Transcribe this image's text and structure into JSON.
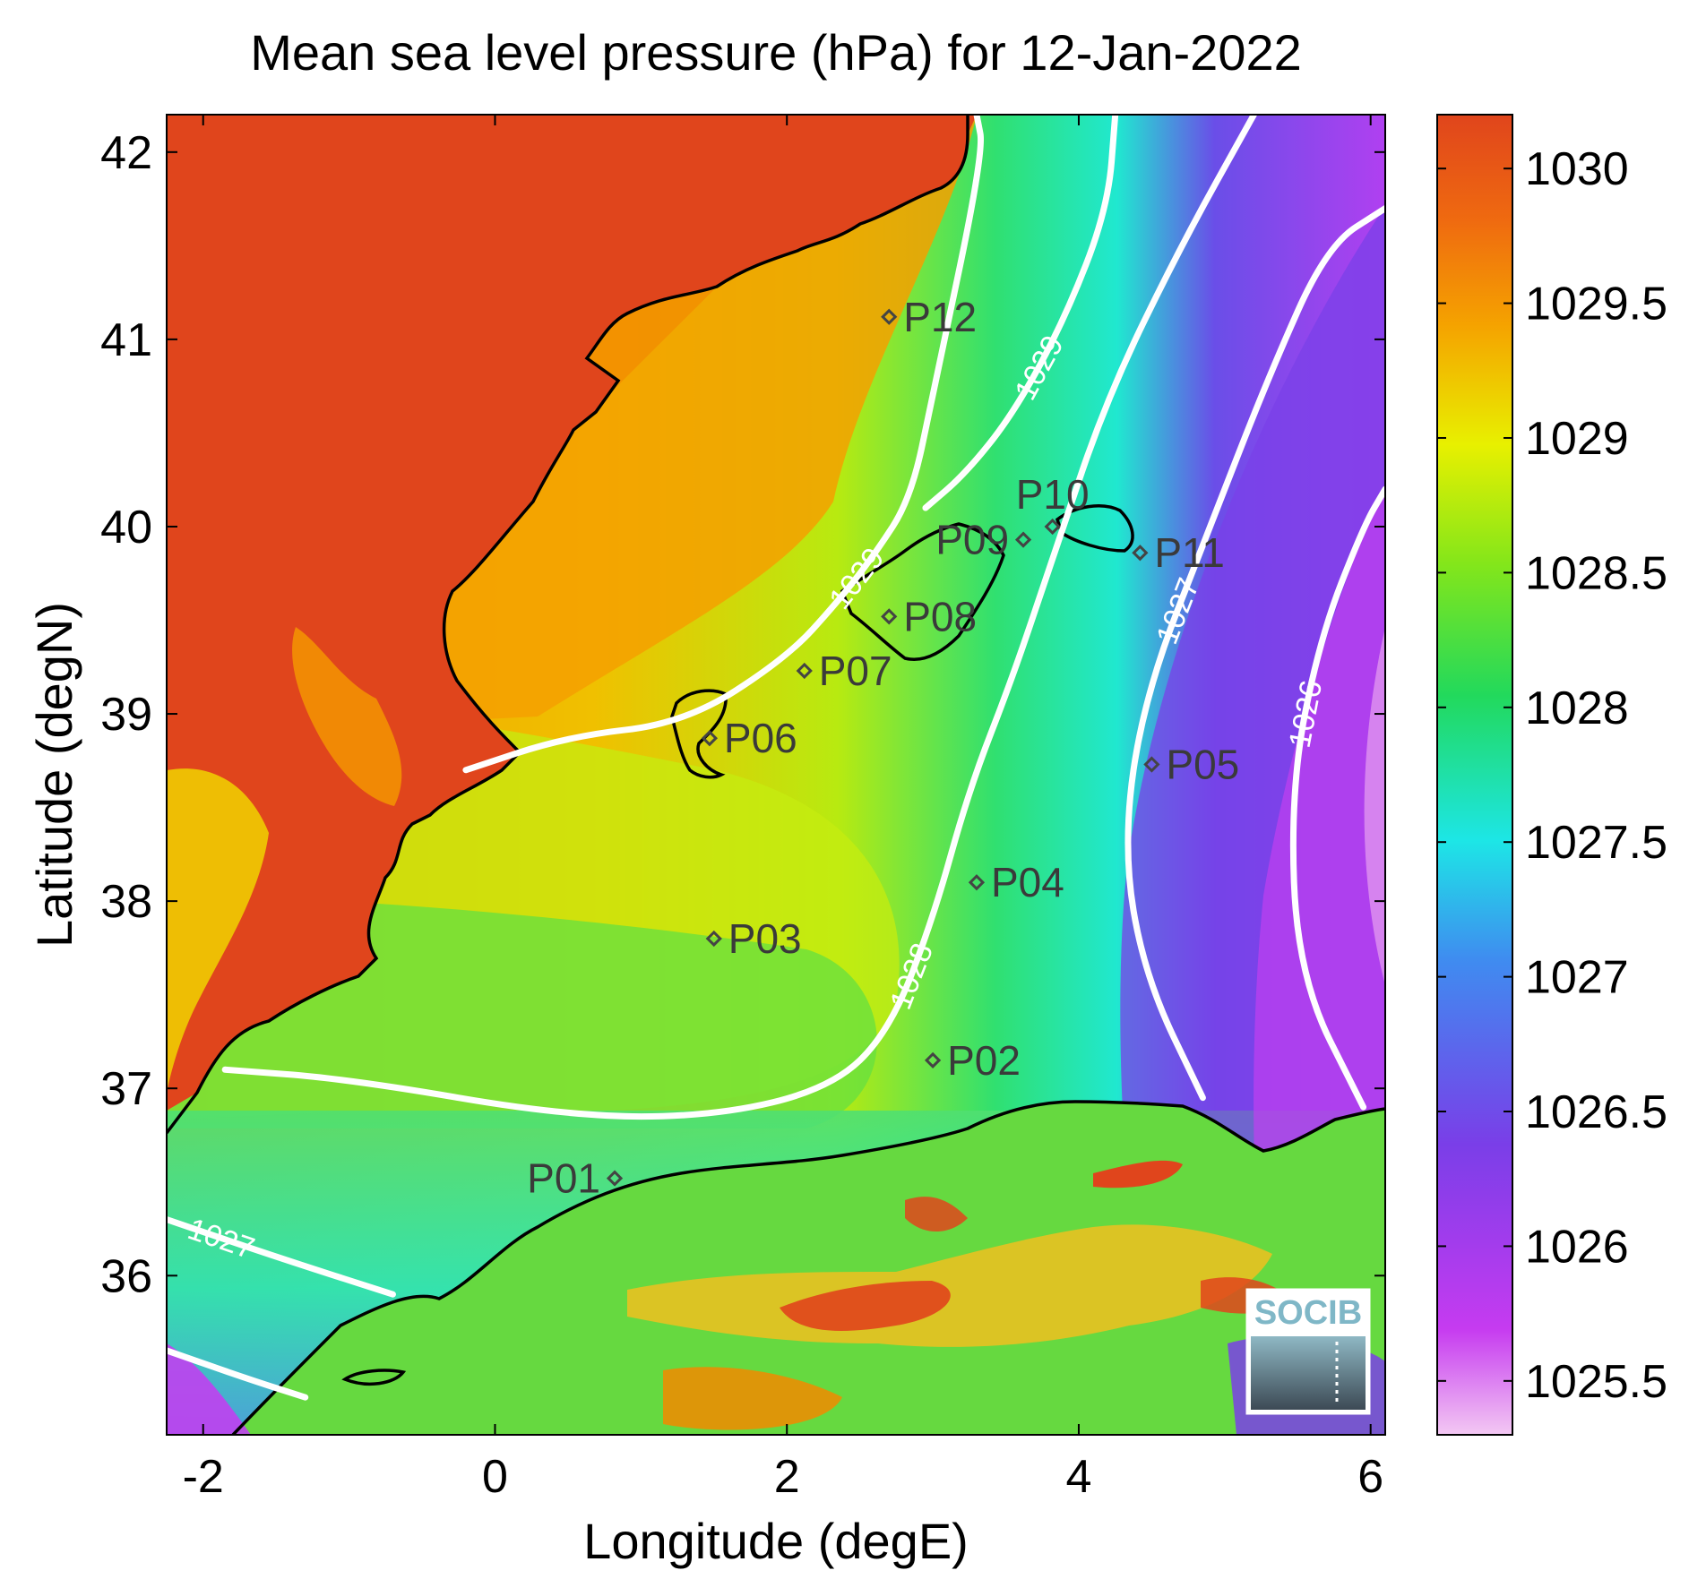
{
  "title": "Mean sea level pressure (hPa) for 12-Jan-2022",
  "xlabel": "Longitude (degE)",
  "ylabel": "Latitude (degN)",
  "logo_text": "SOCIB",
  "chart_data": {
    "type": "heatmap",
    "title": "Mean sea level pressure (hPa) for 12-Jan-2022",
    "xlabel": "Longitude (degE)",
    "ylabel": "Latitude (degN)",
    "xlim": [
      -2.25,
      6.1
    ],
    "ylim": [
      35.15,
      42.2
    ],
    "x_ticks": [
      -2,
      0,
      2,
      4,
      6
    ],
    "x_tick_labels": [
      "-2",
      "0",
      "2",
      "4",
      "6"
    ],
    "y_ticks": [
      36,
      37,
      38,
      39,
      40,
      41,
      42
    ],
    "y_tick_labels": [
      "36",
      "37",
      "38",
      "39",
      "40",
      "41",
      "42"
    ],
    "colorbar": {
      "range": [
        1025.3,
        1030.2
      ],
      "ticks": [
        1025.5,
        1026,
        1026.5,
        1027,
        1027.5,
        1028,
        1028.5,
        1029,
        1029.5,
        1030
      ],
      "tick_labels": [
        "1025.5",
        "1026",
        "1026.5",
        "1027",
        "1027.5",
        "1028",
        "1028.5",
        "1029",
        "1029.5",
        "1030"
      ],
      "colormap": [
        "#f3c8f3",
        "#c63bf0",
        "#7a3ee8",
        "#3f8cf0",
        "#1de6e6",
        "#22d95c",
        "#84e61a",
        "#e8f000",
        "#f5a300",
        "#e0451c"
      ]
    },
    "stations": [
      {
        "label": "P01",
        "lon": 0.82,
        "lat": 36.52,
        "label_side": "left"
      },
      {
        "label": "P02",
        "lon": 3.0,
        "lat": 37.15,
        "label_side": "right"
      },
      {
        "label": "P03",
        "lon": 1.5,
        "lat": 37.8,
        "label_side": "right"
      },
      {
        "label": "P04",
        "lon": 3.3,
        "lat": 38.1,
        "label_side": "right"
      },
      {
        "label": "P05",
        "lon": 4.5,
        "lat": 38.73,
        "label_side": "right"
      },
      {
        "label": "P06",
        "lon": 1.47,
        "lat": 38.87,
        "label_side": "right"
      },
      {
        "label": "P07",
        "lon": 2.12,
        "lat": 39.23,
        "label_side": "right"
      },
      {
        "label": "P08",
        "lon": 2.7,
        "lat": 39.52,
        "label_side": "right"
      },
      {
        "label": "P09",
        "lon": 3.62,
        "lat": 39.93,
        "label_side": "left"
      },
      {
        "label": "P10",
        "lon": 3.82,
        "lat": 40.0,
        "label_side": "above"
      },
      {
        "label": "P11",
        "lon": 4.42,
        "lat": 39.86,
        "label_side": "right"
      },
      {
        "label": "P12",
        "lon": 2.7,
        "lat": 41.12,
        "label_side": "right"
      }
    ],
    "contours": [
      {
        "level": 1029,
        "label": "1029",
        "points": [
          [
            3.3,
            42.2
          ],
          [
            3.35,
            42.0
          ],
          [
            3.0,
            40.7
          ],
          [
            2.85,
            40.15
          ],
          [
            2.6,
            39.85
          ],
          [
            2.35,
            39.6
          ],
          [
            2.0,
            39.3
          ],
          [
            1.3,
            38.95
          ],
          [
            0.5,
            38.88
          ],
          [
            -0.2,
            38.7
          ]
        ]
      },
      {
        "level": 1029,
        "label": "1029",
        "points": [
          [
            4.25,
            42.2
          ],
          [
            4.2,
            41.7
          ],
          [
            3.9,
            41.1
          ],
          [
            3.55,
            40.6
          ],
          [
            3.22,
            40.28
          ],
          [
            2.95,
            40.1
          ]
        ]
      },
      {
        "level": 1028,
        "label": "1028",
        "points": [
          [
            -1.85,
            37.1
          ],
          [
            -1.0,
            37.05
          ],
          [
            0.5,
            36.85
          ],
          [
            1.5,
            36.85
          ],
          [
            2.3,
            37.0
          ],
          [
            2.7,
            37.3
          ],
          [
            3.0,
            37.9
          ],
          [
            3.25,
            38.6
          ],
          [
            3.55,
            39.2
          ],
          [
            3.85,
            39.9
          ],
          [
            4.2,
            40.7
          ],
          [
            4.7,
            41.5
          ],
          [
            5.2,
            42.2
          ]
        ]
      },
      {
        "level": 1027,
        "label": "1027",
        "points": [
          [
            -2.25,
            36.3
          ],
          [
            -1.5,
            36.1
          ],
          [
            -0.7,
            35.9
          ]
        ]
      },
      {
        "level": 1027,
        "label": "1027",
        "points": [
          [
            4.85,
            36.95
          ],
          [
            4.45,
            37.6
          ],
          [
            4.3,
            38.3
          ],
          [
            4.45,
            39.1
          ],
          [
            4.9,
            40.0
          ],
          [
            5.3,
            40.8
          ],
          [
            5.7,
            41.5
          ],
          [
            6.1,
            41.7
          ]
        ]
      },
      {
        "level": 1026,
        "label": "1026",
        "points": [
          [
            5.95,
            36.9
          ],
          [
            5.5,
            37.6
          ],
          [
            5.45,
            38.6
          ],
          [
            5.65,
            39.4
          ],
          [
            5.95,
            40.0
          ],
          [
            6.1,
            40.2
          ]
        ]
      },
      {
        "level": 1027,
        "label": "",
        "points": [
          [
            -2.25,
            35.6
          ],
          [
            -1.7,
            35.45
          ],
          [
            -1.3,
            35.35
          ]
        ]
      }
    ]
  }
}
